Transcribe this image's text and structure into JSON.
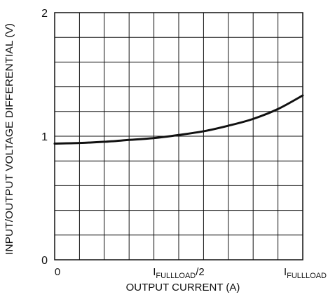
{
  "chart_data": {
    "type": "line",
    "title": "",
    "xlabel": "OUTPUT CURRENT (A)",
    "ylabel": "INPUT/OUTPUT VOLTAGE DIFFERENTIAL (V)",
    "xlim": [
      0,
      1
    ],
    "ylim": [
      0,
      2
    ],
    "grid": true,
    "x_ticks": [
      {
        "value": 0,
        "label": "0",
        "sub": ""
      },
      {
        "value": 0.5,
        "label": "I",
        "sub": "FULLLOAD",
        "suffix": "/2"
      },
      {
        "value": 1,
        "label": "I",
        "sub": "FULLLOAD",
        "suffix": ""
      }
    ],
    "y_ticks": [
      {
        "value": 0,
        "label": "0"
      },
      {
        "value": 1,
        "label": "1"
      },
      {
        "value": 2,
        "label": "2"
      }
    ],
    "series": [
      {
        "x": [
          0,
          0.1,
          0.2,
          0.3,
          0.4,
          0.5,
          0.6,
          0.7,
          0.8,
          0.9,
          1.0
        ],
        "y": [
          0.94,
          0.945,
          0.955,
          0.97,
          0.985,
          1.01,
          1.04,
          1.085,
          1.14,
          1.22,
          1.33
        ]
      }
    ]
  }
}
